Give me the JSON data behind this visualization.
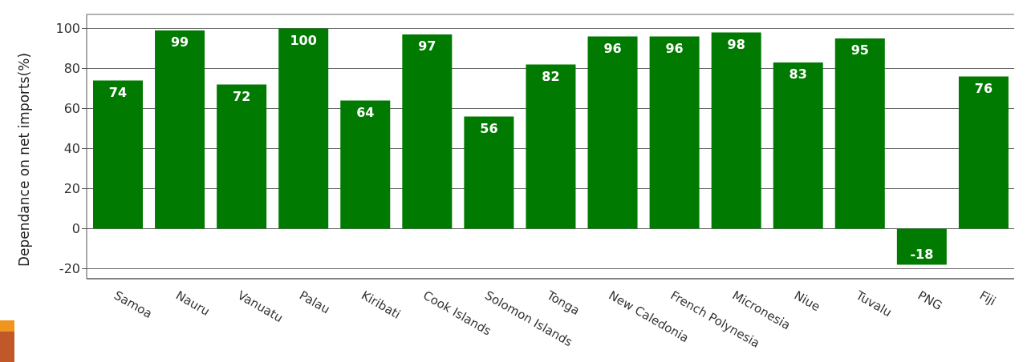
{
  "chart_data": {
    "type": "bar",
    "ylabel": "Dependance on net imports(%)",
    "categories": [
      "Samoa",
      "Nauru",
      "Vanuatu",
      "Palau",
      "Kiribati",
      "Cook Islands",
      "Solomon Islands",
      "Tonga",
      "New Caledonia",
      "French Polynesia",
      "Micronesia",
      "Niue",
      "Tuvalu",
      "PNG",
      "Fiji"
    ],
    "values": [
      74,
      99,
      72,
      100,
      64,
      97,
      56,
      82,
      96,
      96,
      98,
      83,
      95,
      -18,
      76
    ],
    "color": "#007a00",
    "ylim": [
      -25,
      107
    ],
    "yticks": [
      -20,
      0,
      20,
      40,
      60,
      80,
      100
    ],
    "grid": "y",
    "data_labels": true
  }
}
